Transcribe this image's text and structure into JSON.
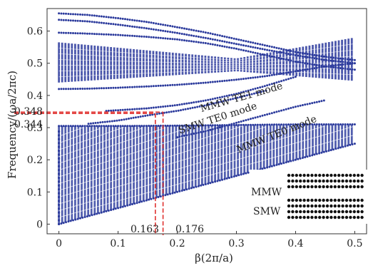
{
  "chart_data": {
    "type": "scatter",
    "title": "",
    "xlabel": "β(2π/a)",
    "ylabel": "Frequency/(ωa/2πc)",
    "xlim": [
      -0.02,
      0.52
    ],
    "ylim": [
      -0.03,
      0.67
    ],
    "x_ticks": [
      0,
      0.1,
      0.2,
      0.3,
      0.4,
      0.5
    ],
    "x_tick_labels": [
      "0",
      "0.1",
      "0.2",
      "0.3",
      "0.4",
      "0.5"
    ],
    "y_ticks": [
      0,
      0.1,
      0.2,
      0.3,
      0.4,
      0.5,
      0.6
    ],
    "y_tick_labels": [
      "0",
      "0.1",
      "0.2",
      "0.3",
      "0.4",
      "0.5",
      "0.6"
    ],
    "grid": false,
    "series_color": "#2b3a9c",
    "series": [
      {
        "x": [
          0,
          0.05,
          0.1,
          0.15,
          0.2,
          0.25,
          0.3,
          0.35,
          0.4,
          0.45,
          0.5
        ],
        "y": [
          0.655,
          0.65,
          0.64,
          0.628,
          0.612,
          0.595,
          0.575,
          0.555,
          0.535,
          0.52,
          0.51
        ]
      },
      {
        "x": [
          0,
          0.05,
          0.1,
          0.15,
          0.2,
          0.25,
          0.3,
          0.35,
          0.4,
          0.45,
          0.5
        ],
        "y": [
          0.635,
          0.63,
          0.62,
          0.608,
          0.594,
          0.578,
          0.56,
          0.542,
          0.525,
          0.51,
          0.5
        ]
      },
      {
        "x": [
          0,
          0.05,
          0.1,
          0.15,
          0.2,
          0.25,
          0.3,
          0.35,
          0.4,
          0.45,
          0.5
        ],
        "y": [
          0.595,
          0.592,
          0.588,
          0.582,
          0.574,
          0.562,
          0.545,
          0.525,
          0.505,
          0.49,
          0.48
        ]
      },
      {
        "x": [
          0,
          0.05,
          0.1,
          0.15,
          0.2,
          0.25,
          0.3,
          0.35,
          0.4,
          0.45,
          0.5
        ],
        "y": [
          0.42,
          0.421,
          0.424,
          0.428,
          0.433,
          0.44,
          0.449,
          0.46,
          0.475,
          0.49,
          0.5
        ]
      },
      {
        "x": [
          0.08,
          0.1,
          0.15,
          0.2,
          0.25,
          0.3,
          0.35,
          0.4
        ],
        "y": [
          0.352,
          0.354,
          0.36,
          0.37,
          0.385,
          0.405,
          0.43,
          0.458
        ]
      },
      {
        "x": [
          0.05,
          0.1,
          0.15,
          0.2,
          0.25,
          0.3,
          0.35
        ],
        "y": [
          0.312,
          0.322,
          0.338,
          0.352,
          0.37,
          0.392,
          0.415
        ]
      },
      {
        "x": [
          0.2,
          0.25,
          0.3,
          0.35,
          0.4,
          0.45
        ],
        "y": [
          0.27,
          0.29,
          0.315,
          0.34,
          0.365,
          0.385
        ]
      },
      {
        "x": [
          0,
          0.1,
          0.2,
          0.3,
          0.4,
          0.5
        ],
        "y": [
          0.305,
          0.305,
          0.306,
          0.308,
          0.31,
          0.31
        ]
      },
      {
        "x": [
          0,
          0.05,
          0.1,
          0.15,
          0.2,
          0.25,
          0.3,
          0.35,
          0.4,
          0.45,
          0.5
        ],
        "y": [
          0.0,
          0.025,
          0.05,
          0.075,
          0.1,
          0.125,
          0.15,
          0.175,
          0.2,
          0.225,
          0.25
        ]
      }
    ],
    "annotations": [
      {
        "text": "MMW TE1 mode",
        "x": 0.31,
        "y": 0.385
      },
      {
        "text": "SMW TE0 mode",
        "x": 0.27,
        "y": 0.32
      },
      {
        "text": "MMW TE0 mode",
        "x": 0.37,
        "y": 0.27
      }
    ],
    "marked_values": {
      "y_upper": 0.348,
      "y_lower": 0.344,
      "x_left": 0.163,
      "x_right": 0.176,
      "y_upper_label": "0.348",
      "y_lower_label": "0.344",
      "x_left_label": "0.163",
      "x_right_label": "0.176",
      "line_color": "#e0312f"
    },
    "inset": {
      "mmw_label": "MMW",
      "smw_label": "SMW",
      "dot_color": "#111111"
    }
  }
}
